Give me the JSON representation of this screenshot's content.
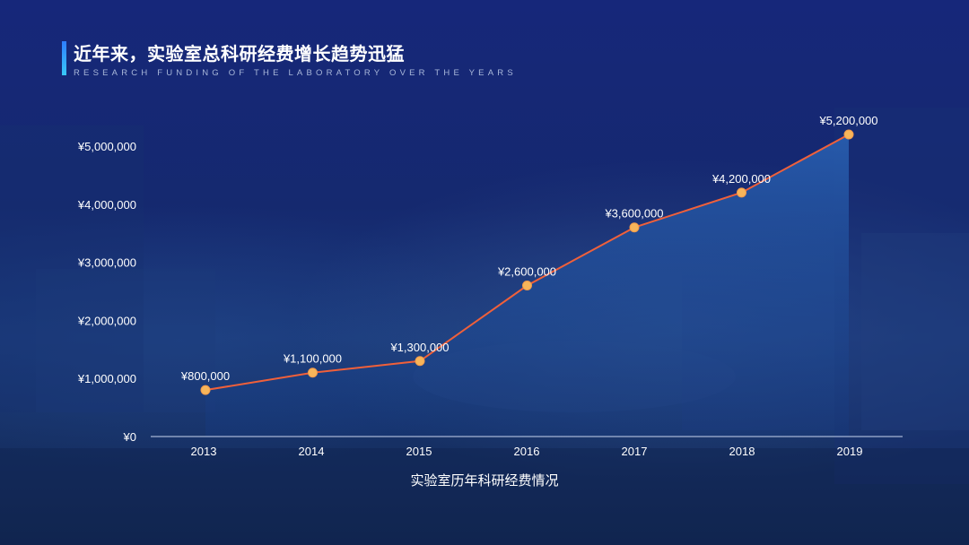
{
  "header": {
    "title": "近年来，实验室总科研经费增长趋势迅猛",
    "subtitle": "RESEARCH FUNDING OF THE LABORATORY OVER THE YEARS"
  },
  "colors": {
    "line": "#f0603a",
    "marker_fill": "#f7b55a",
    "area_top": "#2a63b5",
    "area_bottom": "#163a80",
    "axis": "#c8d4ee",
    "accent": "#2e7dff"
  },
  "chart_data": {
    "type": "area",
    "title": "",
    "xlabel": "实验室历年科研经费情况",
    "ylabel": "",
    "categories": [
      "2013",
      "2014",
      "2015",
      "2016",
      "2017",
      "2018",
      "2019"
    ],
    "values": [
      800000,
      1100000,
      1300000,
      2600000,
      3600000,
      4200000,
      5200000
    ],
    "data_labels": [
      "¥800,000",
      "¥1,100,000",
      "¥1,300,000",
      "¥2,600,000",
      "¥3,600,000",
      "¥4,200,000",
      "¥5,200,000"
    ],
    "ylim": [
      0,
      5000000
    ],
    "yticks": [
      0,
      1000000,
      2000000,
      3000000,
      4000000,
      5000000
    ],
    "ytick_labels": [
      "¥0",
      "¥1,000,000",
      "¥2,000,000",
      "¥3,000,000",
      "¥4,000,000",
      "¥5,000,000"
    ],
    "grid": false,
    "legend": "none",
    "line_with_markers": true
  }
}
